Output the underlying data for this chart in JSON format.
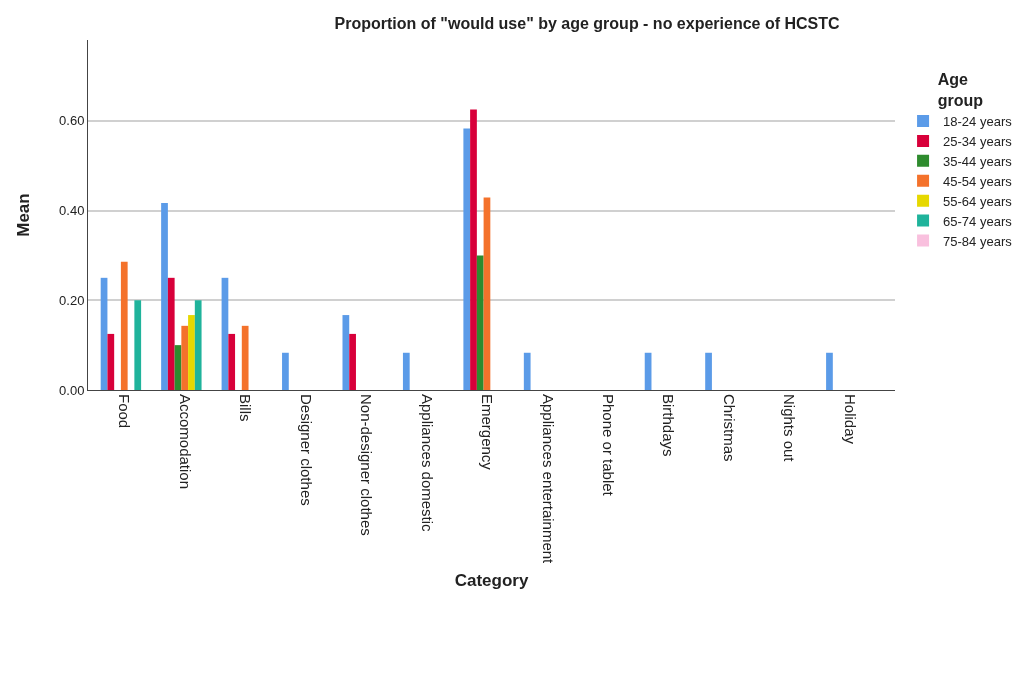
{
  "chart_data": {
    "type": "bar",
    "title": "Proportion of \"would use\" by age group - no experience of HCSTC",
    "xlabel": "Category",
    "ylabel": "Mean",
    "legend_title": "Age group",
    "categories": [
      "Food",
      "Accomodation",
      "Bills",
      "Designer clothes",
      "Non-designer clothes",
      "Appliances domestic",
      "Emergency",
      "Appliances entertainment",
      "Phone or tablet",
      "Birthdays",
      "Christmas",
      "Nights out",
      "Holiday"
    ],
    "series": [
      {
        "name": "18-24 years",
        "color": "#5b9be8",
        "values": [
          0.25,
          0.417,
          0.25,
          0.083,
          0.167,
          0.083,
          0.583,
          0.083,
          null,
          0.083,
          0.083,
          null,
          0.083
        ]
      },
      {
        "name": "25-34 years",
        "color": "#d8003a",
        "values": [
          0.125,
          0.25,
          0.125,
          null,
          0.125,
          null,
          0.625,
          null,
          null,
          null,
          null,
          null,
          null
        ]
      },
      {
        "name": "35-44 years",
        "color": "#2e8b2e",
        "values": [
          null,
          0.1,
          null,
          null,
          null,
          null,
          0.3,
          null,
          null,
          null,
          null,
          null,
          null
        ]
      },
      {
        "name": "45-54 years",
        "color": "#f4722b",
        "values": [
          0.286,
          0.143,
          0.143,
          null,
          null,
          null,
          0.429,
          null,
          null,
          null,
          null,
          null,
          null
        ]
      },
      {
        "name": "55-64 years",
        "color": "#e6d800",
        "values": [
          null,
          0.167,
          null,
          null,
          null,
          null,
          null,
          null,
          null,
          null,
          null,
          null,
          null
        ]
      },
      {
        "name": "65-74 years",
        "color": "#1fb39b",
        "values": [
          0.2,
          0.2,
          null,
          null,
          null,
          null,
          null,
          null,
          null,
          null,
          null,
          null,
          null
        ]
      },
      {
        "name": "75-84 years",
        "color": "#f9c0de",
        "values": [
          null,
          null,
          null,
          null,
          null,
          null,
          null,
          null,
          null,
          null,
          null,
          null,
          null
        ]
      }
    ],
    "ylim": [
      0,
      0.78
    ],
    "yticks": [
      {
        "value": 0,
        "label": "0.00"
      },
      {
        "value": 0.2,
        "label": "0.20"
      },
      {
        "value": 0.4,
        "label": "0.40"
      },
      {
        "value": 0.6,
        "label": "0.60"
      }
    ],
    "grid": "y",
    "legend": "top right"
  }
}
